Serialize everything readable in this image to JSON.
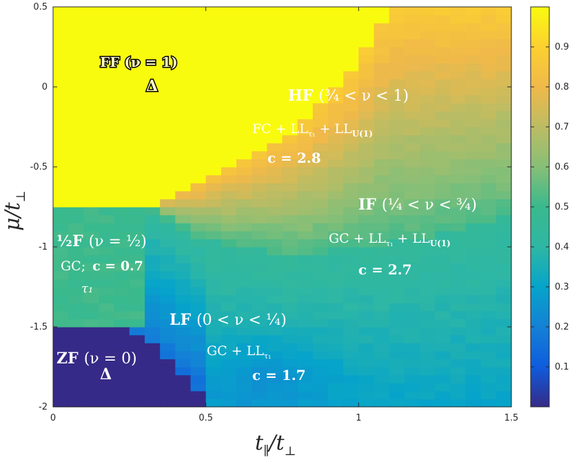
{
  "chart_data": {
    "type": "heatmap",
    "xlabel": "t∥/t⊥",
    "ylabel": "μ/t⊥",
    "xlim": [
      0,
      1.5
    ],
    "ylim": [
      -2,
      0.5
    ],
    "xticks": [
      "0",
      "0.5",
      "1",
      "1.5"
    ],
    "yticks": [
      "-2",
      "-1.5",
      "-1",
      "-0.5",
      "0",
      "0.5"
    ],
    "colorbar": {
      "range": [
        0,
        1
      ],
      "ticks": [
        "0.1",
        "0.2",
        "0.3",
        "0.4",
        "0.5",
        "0.6",
        "0.7",
        "0.8",
        "0.9"
      ],
      "colormap": "parula"
    },
    "grid_resolution": {
      "nx": 30,
      "ny": 50
    },
    "phase_boundaries": {
      "FF_lower": [
        [
          0,
          -0.75
        ],
        [
          0.3,
          -0.75
        ],
        [
          0.5,
          -0.55
        ],
        [
          0.8,
          -0.25
        ],
        [
          1.0,
          0.15
        ],
        [
          1.1,
          0.5
        ]
      ],
      "IF_lower": [
        [
          0.3,
          -0.75
        ],
        [
          0.5,
          -0.95
        ],
        [
          0.8,
          -1.05
        ],
        [
          1.2,
          -0.95
        ],
        [
          1.5,
          -0.8
        ]
      ],
      "ZF_upper": [
        [
          0,
          -1.5
        ],
        [
          0.25,
          -1.5
        ],
        [
          0.35,
          -1.65
        ],
        [
          0.45,
          -1.85
        ],
        [
          0.5,
          -2.0
        ]
      ]
    },
    "phase_fill_values": {
      "FF": 1.0,
      "ZF": 0.0,
      "half_F": 0.5
    },
    "annotations": [
      {
        "id": "ff",
        "lines": [
          "FF (ν = 1)"
        ],
        "marker": "Δ"
      },
      {
        "id": "hf",
        "lines": [
          "HF (3/4 < ν < 1)",
          "FC + LLτ1 + LLU(1)",
          "c = 2.8"
        ]
      },
      {
        "id": "if",
        "lines": [
          "IF (1/4 < ν < 3/4)",
          "GC + LLτ1 + LLU(1)",
          "c = 2.7"
        ]
      },
      {
        "id": "half",
        "lines": [
          "1/2 F (ν = 1/2)",
          "GC;  c = 0.7",
          "τ1"
        ]
      },
      {
        "id": "lf",
        "lines": [
          "LF (0 < ν < 1/4)",
          "GC + LLτ1",
          "c = 1.7"
        ]
      },
      {
        "id": "zf",
        "lines": [
          "ZF (ν = 0)"
        ],
        "marker": "Δ"
      }
    ]
  },
  "labels": {
    "x_main": "t",
    "x_sub": "∥",
    "x_rest": "/t",
    "x_rest_sub": "⊥",
    "y_main": "μ/t",
    "y_sub": "⊥",
    "ff": "FF (ν = 1)",
    "hf": "HF",
    "hf_nu": "(¾ < ν < 1)",
    "hf_ops": "FC + LL",
    "hf_ops_sub1": "τ₁",
    "hf_ops2": " + LL",
    "hf_ops_sub2": "U(1)",
    "hf_c": "c = 2.8",
    "if": "IF",
    "if_nu": "(¼ < ν < ¾)",
    "if_ops": "GC + LL",
    "if_ops_sub1": "τ₁",
    "if_ops2": " + LL",
    "if_ops_sub2": "U(1)",
    "if_c": "c = 2.7",
    "half": "½F",
    "half_nu": "(ν = ½)",
    "half_gc": "GC;",
    "half_c": "c = 0.7",
    "half_tau": "τ₁",
    "lf": "LF",
    "lf_nu": "(0 < ν < ¼)",
    "lf_ops": "GC + LL",
    "lf_ops_sub": "τ₁",
    "lf_c": "c = 1.7",
    "zf": "ZF",
    "zf_nu": "(ν = 0)",
    "delta": "Δ"
  }
}
